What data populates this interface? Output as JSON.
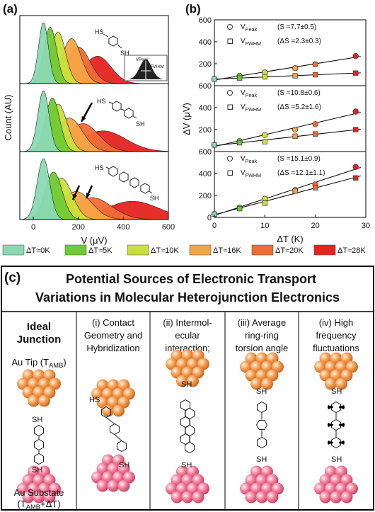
{
  "panel_labels": {
    "a": "(a)",
    "b": "(b)"
  },
  "chart_data": [
    {
      "type": "distribution",
      "xlabel": "V (μV)",
      "ylabel": "Count (AU)",
      "xlim": [
        -60,
        600
      ],
      "xticks": [
        0,
        200,
        400,
        600
      ],
      "series": [
        {
          "name": "ΔT≈0K",
          "color": "#8bd9b4",
          "center": [
            45,
            45,
            45
          ],
          "width": [
            22,
            25,
            28
          ],
          "height": [
            1.0,
            1.0,
            1.0
          ]
        },
        {
          "name": "ΔT≈5K",
          "color": "#6fcb35",
          "center": [
            75,
            85,
            90
          ],
          "width": [
            28,
            32,
            38
          ],
          "height": [
            0.93,
            0.88,
            0.78
          ]
        },
        {
          "name": "ΔT≈10K",
          "color": "#c9e03c",
          "center": [
            110,
            110,
            125
          ],
          "width": [
            33,
            40,
            48
          ],
          "height": [
            0.85,
            0.78,
            0.68
          ]
        },
        {
          "name": "ΔT≈16K",
          "color": "#f5a445",
          "center": [
            170,
            160,
            190
          ],
          "width": [
            42,
            58,
            68
          ],
          "height": [
            0.74,
            0.55,
            0.46
          ]
        },
        {
          "name": "ΔT≈20K",
          "color": "#f06c34",
          "center": [
            200,
            220,
            260
          ],
          "width": [
            52,
            70,
            88
          ],
          "height": [
            0.6,
            0.46,
            0.36
          ]
        },
        {
          "name": "ΔT≈28K",
          "color": "#e52420",
          "center": [
            285,
            310,
            440
          ],
          "width": [
            60,
            100,
            120
          ],
          "height": [
            0.45,
            0.34,
            0.3
          ]
        }
      ],
      "insets": [
        {
          "labels": [
            "HS",
            "SH"
          ],
          "box_labels": [
            "VPeak",
            "VFWHM"
          ]
        },
        {
          "labels": [
            "HS",
            "SH"
          ]
        },
        {
          "labels": [
            "HS",
            "SH"
          ]
        }
      ]
    },
    {
      "type": "scatter",
      "xlabel": "ΔT (K)",
      "ylabel": "ΔV (μV)",
      "xlim": [
        0,
        30
      ],
      "xticks": [
        0,
        10,
        20,
        30
      ],
      "x": [
        0,
        5,
        10,
        16,
        20,
        28
      ],
      "panels": [
        {
          "ylim": [
            0,
            600
          ],
          "yticks": [
            200,
            400,
            600
          ],
          "series": [
            {
              "name": "V",
              "name_sub": "Peak",
              "note": "(S =7.7±0.5)",
              "marker": "circle",
              "values": [
                60,
                90,
                120,
                160,
                195,
                270
              ]
            },
            {
              "name": "V",
              "name_sub": "FWHM",
              "note": "(ΔS =2.3±0.3)",
              "marker": "square",
              "values": [
                60,
                70,
                80,
                90,
                100,
                115
              ]
            }
          ]
        },
        {
          "ylim": [
            0,
            600
          ],
          "yticks": [
            200,
            400,
            600
          ],
          "series": [
            {
              "name": "V",
              "name_sub": "Peak",
              "note": "(S =10.8±0.6)",
              "marker": "circle",
              "values": [
                60,
                95,
                150,
                200,
                250,
                365
              ]
            },
            {
              "name": "V",
              "name_sub": "FWHM",
              "note": "(ΔS =5.2±1.6)",
              "marker": "square",
              "values": [
                60,
                80,
                90,
                140,
                160,
                200
              ]
            }
          ]
        },
        {
          "ylim": [
            0,
            600
          ],
          "yticks": [
            0,
            200,
            400,
            600
          ],
          "series": [
            {
              "name": "V",
              "name_sub": "Peak",
              "note": "(S =15.1±0.9)",
              "marker": "circle",
              "values": [
                30,
                90,
                170,
                250,
                300,
                460
              ]
            },
            {
              "name": "V",
              "name_sub": "FWHM",
              "note": "(ΔS =12.1±1.1)",
              "marker": "square",
              "values": [
                30,
                80,
                130,
                240,
                270,
                360
              ]
            }
          ]
        }
      ]
    }
  ],
  "panel_c": {
    "label": "(c)",
    "title": [
      "Potential Sources of Electronic Transport",
      "Variations in Molecular Heterojunction Electronics"
    ],
    "tip_label": {
      "pre": "Au Tip (T",
      "sub": "AMB",
      "post": ")"
    },
    "substrate_label": {
      "line1": "Au Substate",
      "pre": "(T",
      "sub": "AMB",
      "post": "+ΔT)"
    },
    "columns": [
      {
        "header": [
          "Ideal",
          "Junction"
        ],
        "labels": [
          "SH",
          "SH"
        ]
      },
      {
        "header": [
          "(i) Contact",
          "Geometry and",
          "Hybridization"
        ],
        "labels": [
          "HS",
          "SH"
        ]
      },
      {
        "header": [
          "(ii) Intermol-",
          "ecular",
          "interaction;"
        ],
        "labels": [
          "SH",
          "SH"
        ]
      },
      {
        "header": [
          "(iii) Average",
          "ring-ring",
          "torsion angle"
        ],
        "labels": [
          "SH",
          "SH"
        ]
      },
      {
        "header": [
          "(iv) High",
          "frequency",
          "fluctuations"
        ],
        "labels": [
          "SH",
          "SH"
        ]
      }
    ]
  }
}
